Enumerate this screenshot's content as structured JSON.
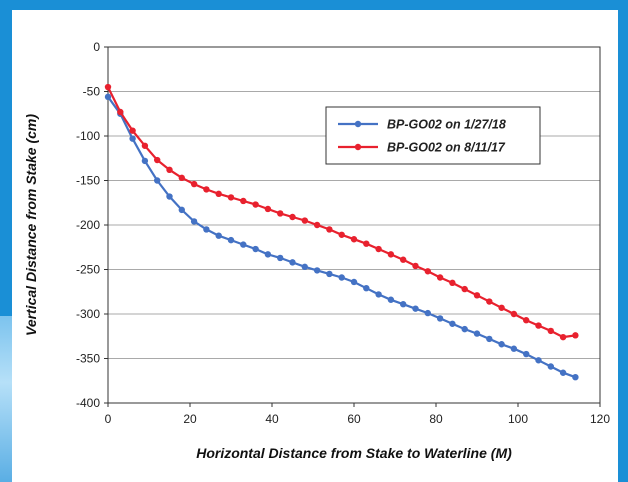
{
  "chart_data": {
    "type": "line",
    "title": "",
    "xlabel": "Horizontal Distance from Stake to Waterline (M)",
    "ylabel": "Vertical Distance from Stake (cm)",
    "xlim": [
      0,
      120
    ],
    "ylim": [
      -400,
      0
    ],
    "x_ticks": [
      "0",
      "20",
      "40",
      "60",
      "80",
      "100",
      "120"
    ],
    "y_ticks": [
      "0",
      "-50",
      "-100",
      "-150",
      "-200",
      "-250",
      "-300",
      "-350",
      "-400"
    ],
    "grid": "horizontal",
    "legend_position": "top-right",
    "series": [
      {
        "name": "BP-GO02 on 1/27/18",
        "color": "#4472c4",
        "points": [
          [
            0,
            -56
          ],
          [
            3,
            -75
          ],
          [
            6,
            -103
          ],
          [
            9,
            -128
          ],
          [
            12,
            -150
          ],
          [
            15,
            -168
          ],
          [
            18,
            -183
          ],
          [
            21,
            -196
          ],
          [
            24,
            -205
          ],
          [
            27,
            -212
          ],
          [
            30,
            -217
          ],
          [
            33,
            -222
          ],
          [
            36,
            -227
          ],
          [
            39,
            -233
          ],
          [
            42,
            -237
          ],
          [
            45,
            -242
          ],
          [
            48,
            -247
          ],
          [
            51,
            -251
          ],
          [
            54,
            -255
          ],
          [
            57,
            -259
          ],
          [
            60,
            -264
          ],
          [
            63,
            -271
          ],
          [
            66,
            -278
          ],
          [
            69,
            -284
          ],
          [
            72,
            -289
          ],
          [
            75,
            -294
          ],
          [
            78,
            -299
          ],
          [
            81,
            -305
          ],
          [
            84,
            -311
          ],
          [
            87,
            -317
          ],
          [
            90,
            -322
          ],
          [
            93,
            -328
          ],
          [
            96,
            -334
          ],
          [
            99,
            -339
          ],
          [
            102,
            -345
          ],
          [
            105,
            -352
          ],
          [
            108,
            -359
          ],
          [
            111,
            -366
          ],
          [
            114,
            -371
          ]
        ]
      },
      {
        "name": "BP-GO02 on 8/11/17",
        "color": "#e8212e",
        "points": [
          [
            0,
            -45
          ],
          [
            3,
            -73
          ],
          [
            6,
            -94
          ],
          [
            9,
            -111
          ],
          [
            12,
            -127
          ],
          [
            15,
            -138
          ],
          [
            18,
            -147
          ],
          [
            21,
            -154
          ],
          [
            24,
            -160
          ],
          [
            27,
            -165
          ],
          [
            30,
            -169
          ],
          [
            33,
            -173
          ],
          [
            36,
            -177
          ],
          [
            39,
            -182
          ],
          [
            42,
            -187
          ],
          [
            45,
            -191
          ],
          [
            48,
            -195
          ],
          [
            51,
            -200
          ],
          [
            54,
            -205
          ],
          [
            57,
            -211
          ],
          [
            60,
            -216
          ],
          [
            63,
            -221
          ],
          [
            66,
            -227
          ],
          [
            69,
            -233
          ],
          [
            72,
            -239
          ],
          [
            75,
            -246
          ],
          [
            78,
            -252
          ],
          [
            81,
            -259
          ],
          [
            84,
            -265
          ],
          [
            87,
            -272
          ],
          [
            90,
            -279
          ],
          [
            93,
            -286
          ],
          [
            96,
            -293
          ],
          [
            99,
            -300
          ],
          [
            102,
            -307
          ],
          [
            105,
            -313
          ],
          [
            108,
            -319
          ],
          [
            111,
            -326
          ],
          [
            114,
            -324
          ]
        ]
      }
    ]
  }
}
